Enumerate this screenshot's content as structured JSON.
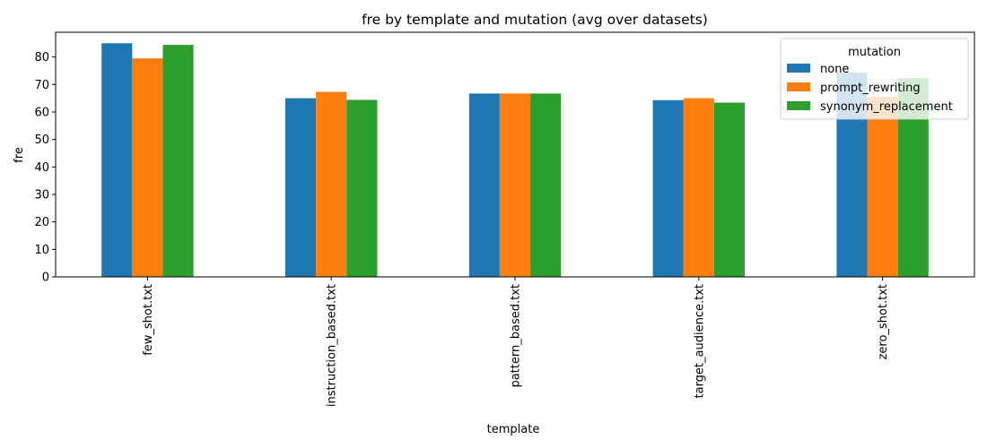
{
  "chart_data": {
    "type": "bar",
    "title": "fre by template and mutation (avg over datasets)",
    "xlabel": "template",
    "ylabel": "fre",
    "categories": [
      "few_shot.txt",
      "instruction_based.txt",
      "pattern_based.txt",
      "target_audience.txt",
      "zero_shot.txt"
    ],
    "series": [
      {
        "name": "none",
        "color": "#1f77b4",
        "values": [
          85.0,
          65.0,
          66.7,
          64.3,
          74.3
        ]
      },
      {
        "name": "prompt_rewriting",
        "color": "#ff7f0e",
        "values": [
          79.5,
          67.3,
          66.7,
          65.0,
          65.5
        ]
      },
      {
        "name": "synonym_replacement",
        "color": "#2ca02c",
        "values": [
          84.4,
          64.4,
          66.7,
          63.4,
          72.3
        ]
      }
    ],
    "ylim": [
      0,
      89
    ],
    "yticks": [
      0,
      10,
      20,
      30,
      40,
      50,
      60,
      70,
      80
    ],
    "grid": false,
    "legend": {
      "title": "mutation",
      "placement": "top-right"
    }
  }
}
